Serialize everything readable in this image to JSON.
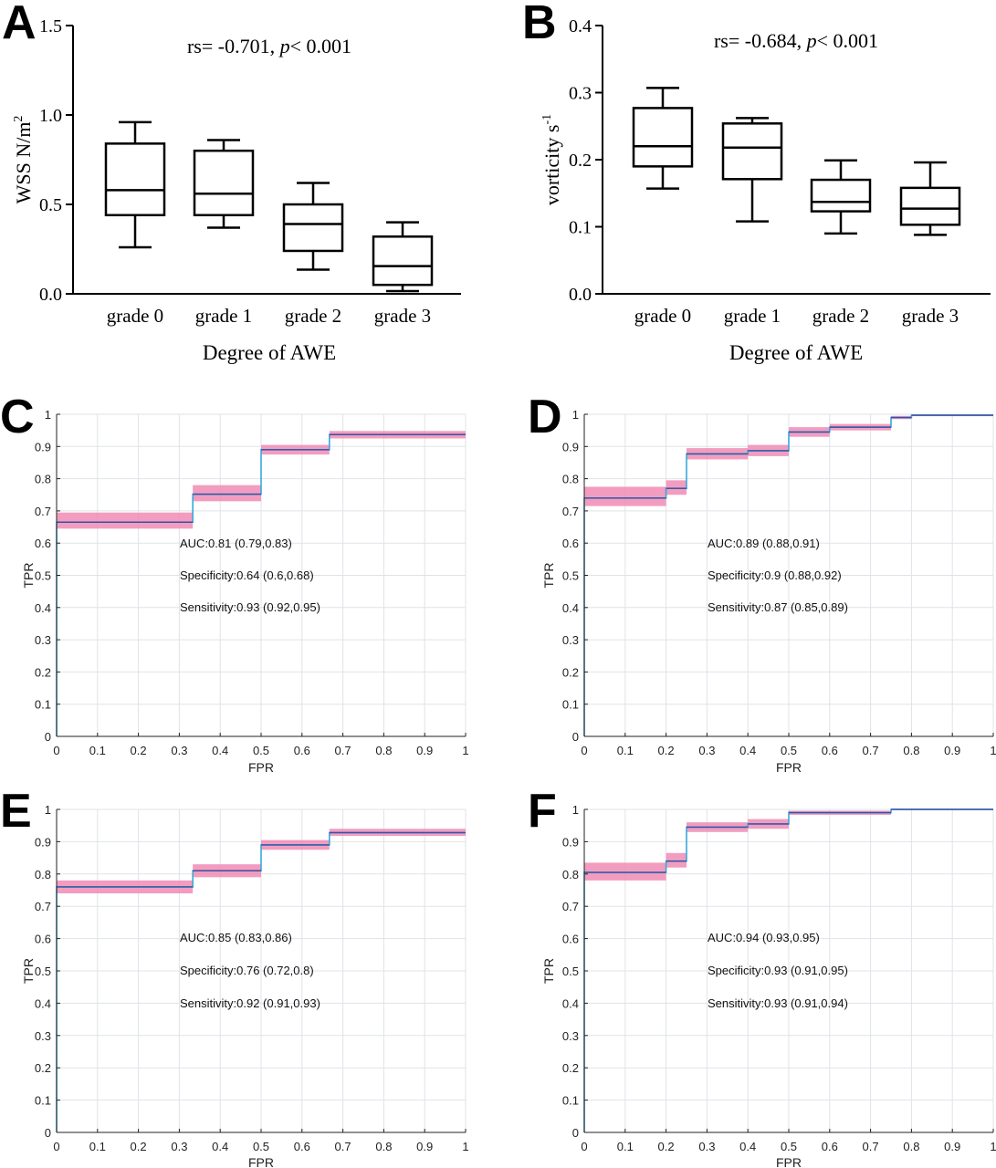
{
  "chart_data": [
    {
      "panel": "A",
      "type": "box",
      "annotation_prefix": "rs= -0.701, ",
      "annotation_p": "p",
      "annotation_suffix": "< 0.001",
      "xlabel": "Degree of AWE",
      "ylabel": "WSS N/m",
      "ylabel_sup": "2",
      "ylim": [
        0,
        1.5
      ],
      "yticks": [
        0.0,
        0.5,
        1.0,
        1.5
      ],
      "ytick_labels": [
        "0.0",
        "0.5",
        "1.0",
        "1.5"
      ],
      "categories": [
        "grade 0",
        "grade 1",
        "grade 2",
        "grade 3"
      ],
      "boxes": [
        {
          "min": 0.26,
          "q1": 0.44,
          "median": 0.58,
          "q3": 0.84,
          "max": 0.96
        },
        {
          "min": 0.37,
          "q1": 0.44,
          "median": 0.56,
          "q3": 0.8,
          "max": 0.86
        },
        {
          "min": 0.135,
          "q1": 0.24,
          "median": 0.39,
          "q3": 0.5,
          "max": 0.62
        },
        {
          "min": 0.015,
          "q1": 0.05,
          "median": 0.155,
          "q3": 0.32,
          "max": 0.4
        }
      ]
    },
    {
      "panel": "B",
      "type": "box",
      "annotation_prefix": "rs= -0.684, ",
      "annotation_p": "p",
      "annotation_suffix": "< 0.001",
      "xlabel": "Degree of AWE",
      "ylabel": "vorticity s",
      "ylabel_sup": "-1",
      "ylim": [
        0,
        0.4
      ],
      "yticks": [
        0.0,
        0.1,
        0.2,
        0.3,
        0.4
      ],
      "ytick_labels": [
        "0.0",
        "0.1",
        "0.2",
        "0.3",
        "0.4"
      ],
      "categories": [
        "grade 0",
        "grade 1",
        "grade 2",
        "grade 3"
      ],
      "boxes": [
        {
          "min": 0.157,
          "q1": 0.19,
          "median": 0.22,
          "q3": 0.277,
          "max": 0.307
        },
        {
          "min": 0.108,
          "q1": 0.171,
          "median": 0.218,
          "q3": 0.254,
          "max": 0.262
        },
        {
          "min": 0.09,
          "q1": 0.123,
          "median": 0.137,
          "q3": 0.17,
          "max": 0.199
        },
        {
          "min": 0.088,
          "q1": 0.103,
          "median": 0.127,
          "q3": 0.158,
          "max": 0.196
        }
      ]
    },
    {
      "panel": "C",
      "type": "line",
      "xlabel": "FPR",
      "ylabel": "TPR",
      "xlim": [
        0,
        1
      ],
      "ylim": [
        0,
        1
      ],
      "ticks": [
        0,
        0.1,
        0.2,
        0.3,
        0.4,
        0.5,
        0.6,
        0.7,
        0.8,
        0.9,
        1
      ],
      "tick_labels": [
        "0",
        "0.1",
        "0.2",
        "0.3",
        "0.4",
        "0.5",
        "0.6",
        "0.7",
        "0.8",
        "0.9",
        "1"
      ],
      "grid": true,
      "steps": [
        {
          "x0": 0,
          "x1": 0.333,
          "y": 0.665,
          "lo": 0.645,
          "hi": 0.695
        },
        {
          "x0": 0.333,
          "x1": 0.5,
          "y": 0.752,
          "lo": 0.73,
          "hi": 0.78
        },
        {
          "x0": 0.5,
          "x1": 0.667,
          "y": 0.89,
          "lo": 0.875,
          "hi": 0.905
        },
        {
          "x0": 0.667,
          "x1": 1,
          "y": 0.937,
          "lo": 0.925,
          "hi": 0.948
        }
      ],
      "stats": [
        "AUC:0.81 (0.79,0.83)",
        "Specificity:0.64 (0.6,0.68)",
        "Sensitivity:0.93 (0.92,0.95)"
      ]
    },
    {
      "panel": "D",
      "type": "line",
      "xlabel": "FPR",
      "ylabel": "TPR",
      "xlim": [
        0,
        1
      ],
      "ylim": [
        0,
        1
      ],
      "ticks": [
        0,
        0.1,
        0.2,
        0.3,
        0.4,
        0.5,
        0.6,
        0.7,
        0.8,
        0.9,
        1
      ],
      "tick_labels": [
        "0",
        "0.1",
        "0.2",
        "0.3",
        "0.4",
        "0.5",
        "0.6",
        "0.7",
        "0.8",
        "0.9",
        "1"
      ],
      "grid": true,
      "steps": [
        {
          "x0": 0,
          "x1": 0.2,
          "y": 0.74,
          "lo": 0.715,
          "hi": 0.775
        },
        {
          "x0": 0.2,
          "x1": 0.25,
          "y": 0.77,
          "lo": 0.75,
          "hi": 0.795
        },
        {
          "x0": 0.25,
          "x1": 0.4,
          "y": 0.877,
          "lo": 0.86,
          "hi": 0.895
        },
        {
          "x0": 0.4,
          "x1": 0.5,
          "y": 0.887,
          "lo": 0.87,
          "hi": 0.905
        },
        {
          "x0": 0.5,
          "x1": 0.6,
          "y": 0.945,
          "lo": 0.93,
          "hi": 0.96
        },
        {
          "x0": 0.6,
          "x1": 0.75,
          "y": 0.96,
          "lo": 0.95,
          "hi": 0.97
        },
        {
          "x0": 0.75,
          "x1": 0.8,
          "y": 0.99,
          "lo": 0.985,
          "hi": 0.995
        },
        {
          "x0": 0.8,
          "x1": 1,
          "y": 0.997,
          "lo": 0.994,
          "hi": 1.0
        }
      ],
      "stats": [
        "AUC:0.89 (0.88,0.91)",
        "Specificity:0.9 (0.88,0.92)",
        "Sensitivity:0.87 (0.85,0.89)"
      ]
    },
    {
      "panel": "E",
      "type": "line",
      "xlabel": "FPR",
      "ylabel": "TPR",
      "xlim": [
        0,
        1
      ],
      "ylim": [
        0,
        1
      ],
      "ticks": [
        0,
        0.1,
        0.2,
        0.3,
        0.4,
        0.5,
        0.6,
        0.7,
        0.8,
        0.9,
        1
      ],
      "tick_labels": [
        "0",
        "0.1",
        "0.2",
        "0.3",
        "0.4",
        "0.5",
        "0.6",
        "0.7",
        "0.8",
        "0.9",
        "1"
      ],
      "grid": true,
      "steps": [
        {
          "x0": 0,
          "x1": 0.333,
          "y": 0.76,
          "lo": 0.74,
          "hi": 0.78
        },
        {
          "x0": 0.333,
          "x1": 0.5,
          "y": 0.81,
          "lo": 0.79,
          "hi": 0.83
        },
        {
          "x0": 0.5,
          "x1": 0.667,
          "y": 0.89,
          "lo": 0.875,
          "hi": 0.905
        },
        {
          "x0": 0.667,
          "x1": 1,
          "y": 0.928,
          "lo": 0.918,
          "hi": 0.94
        }
      ],
      "stats": [
        "AUC:0.85 (0.83,0.86)",
        "Specificity:0.76 (0.72,0.8)",
        "Sensitivity:0.92 (0.91,0.93)"
      ]
    },
    {
      "panel": "F",
      "type": "line",
      "xlabel": "FPR",
      "ylabel": "TPR",
      "xlim": [
        0,
        1
      ],
      "ylim": [
        0,
        1
      ],
      "ticks": [
        0,
        0.1,
        0.2,
        0.3,
        0.4,
        0.5,
        0.6,
        0.7,
        0.8,
        0.9,
        1
      ],
      "tick_labels": [
        "0",
        "0.1",
        "0.2",
        "0.3",
        "0.4",
        "0.5",
        "0.6",
        "0.7",
        "0.8",
        "0.9",
        "1"
      ],
      "grid": true,
      "steps": [
        {
          "x0": 0,
          "x1": 0.2,
          "y": 0.805,
          "lo": 0.78,
          "hi": 0.835
        },
        {
          "x0": 0.2,
          "x1": 0.25,
          "y": 0.84,
          "lo": 0.82,
          "hi": 0.865
        },
        {
          "x0": 0.25,
          "x1": 0.4,
          "y": 0.945,
          "lo": 0.93,
          "hi": 0.96
        },
        {
          "x0": 0.4,
          "x1": 0.5,
          "y": 0.955,
          "lo": 0.94,
          "hi": 0.97
        },
        {
          "x0": 0.5,
          "x1": 0.75,
          "y": 0.99,
          "lo": 0.983,
          "hi": 0.996
        },
        {
          "x0": 0.75,
          "x1": 1,
          "y": 1.0,
          "lo": 1.0,
          "hi": 1.0
        }
      ],
      "stats": [
        "AUC:0.94 (0.93,0.95)",
        "Specificity:0.93 (0.91,0.95)",
        "Sensitivity:0.93 (0.91,0.94)"
      ]
    }
  ],
  "colors": {
    "ci_band": "#f08cb4",
    "roc_line_left": "#3a4fa0",
    "roc_line_right": "#38a8dd",
    "grid": "#dfe3e8",
    "axis": "#000000",
    "roc_axis": "#222222"
  }
}
